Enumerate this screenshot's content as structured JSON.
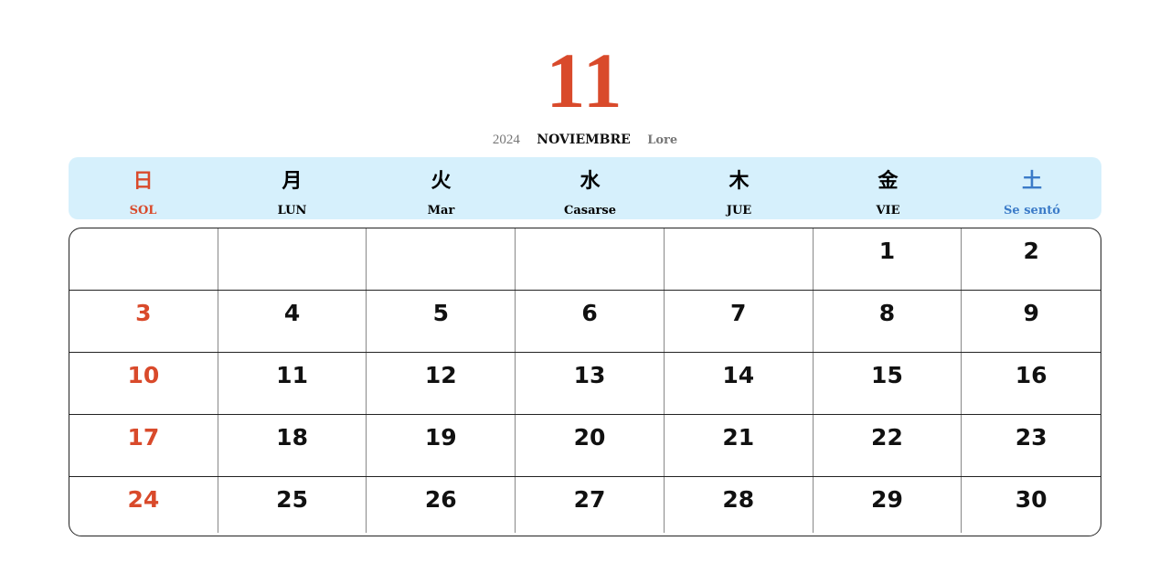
{
  "header": {
    "month_number": "11",
    "year": "2024",
    "month_name": "NOVIEMBRE",
    "extra": "Lore"
  },
  "colors": {
    "sunday": "#d94a2b",
    "saturday": "#3b7bc8",
    "header_bg": "#d6f0fc"
  },
  "weekdays": [
    {
      "kanji": "日",
      "name": "SOL"
    },
    {
      "kanji": "月",
      "name": "LUN"
    },
    {
      "kanji": "火",
      "name": "Mar"
    },
    {
      "kanji": "水",
      "name": "Casarse"
    },
    {
      "kanji": "木",
      "name": "JUE"
    },
    {
      "kanji": "金",
      "name": "VIE"
    },
    {
      "kanji": "土",
      "name": "Se sentó"
    }
  ],
  "weeks": [
    [
      "",
      "",
      "",
      "",
      "",
      "1",
      "2"
    ],
    [
      "3",
      "4",
      "5",
      "6",
      "7",
      "8",
      "9"
    ],
    [
      "10",
      "11",
      "12",
      "13",
      "14",
      "15",
      "16"
    ],
    [
      "17",
      "18",
      "19",
      "20",
      "21",
      "22",
      "23"
    ],
    [
      "24",
      "25",
      "26",
      "27",
      "28",
      "29",
      "30"
    ]
  ]
}
